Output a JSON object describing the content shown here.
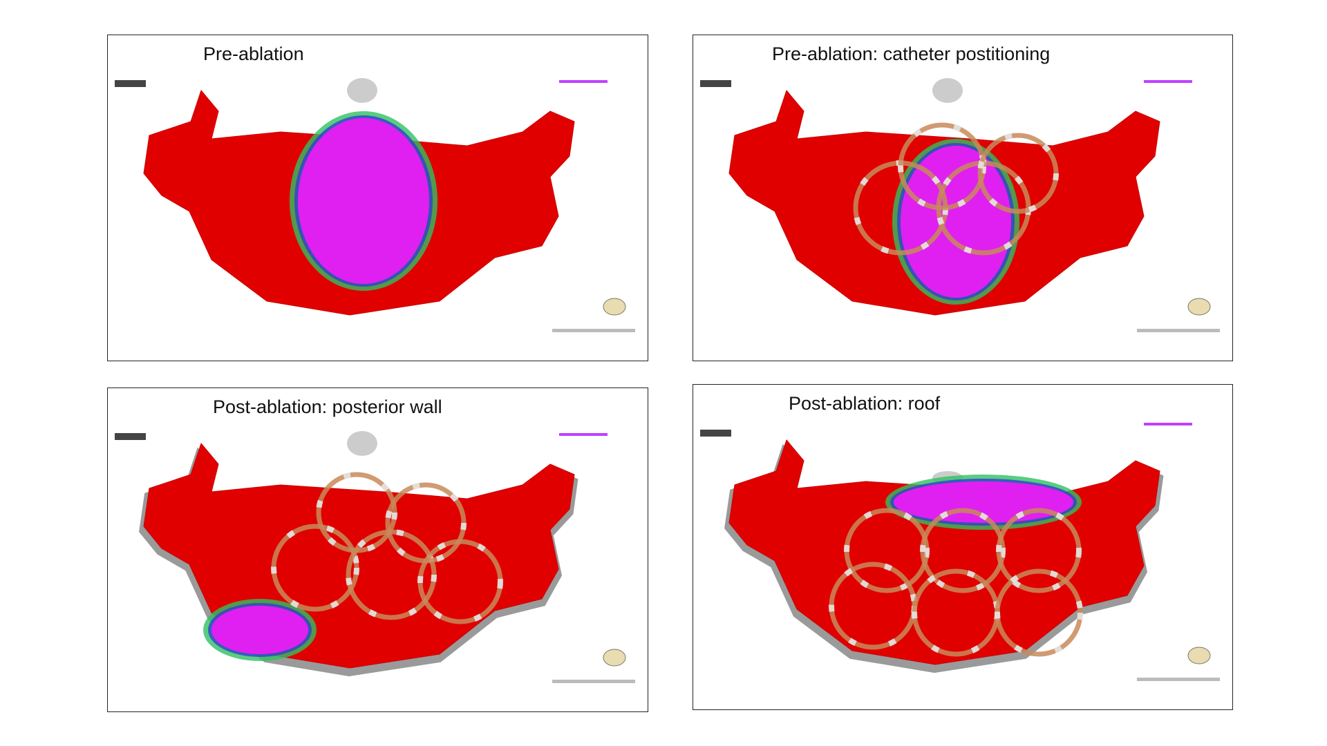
{
  "panels": [
    {
      "title": "Pre-ablation"
    },
    {
      "title": "Pre-ablation: catheter postitioning"
    },
    {
      "title": "Post-ablation: posterior wall"
    },
    {
      "title": "Post-ablation: roof"
    }
  ]
}
